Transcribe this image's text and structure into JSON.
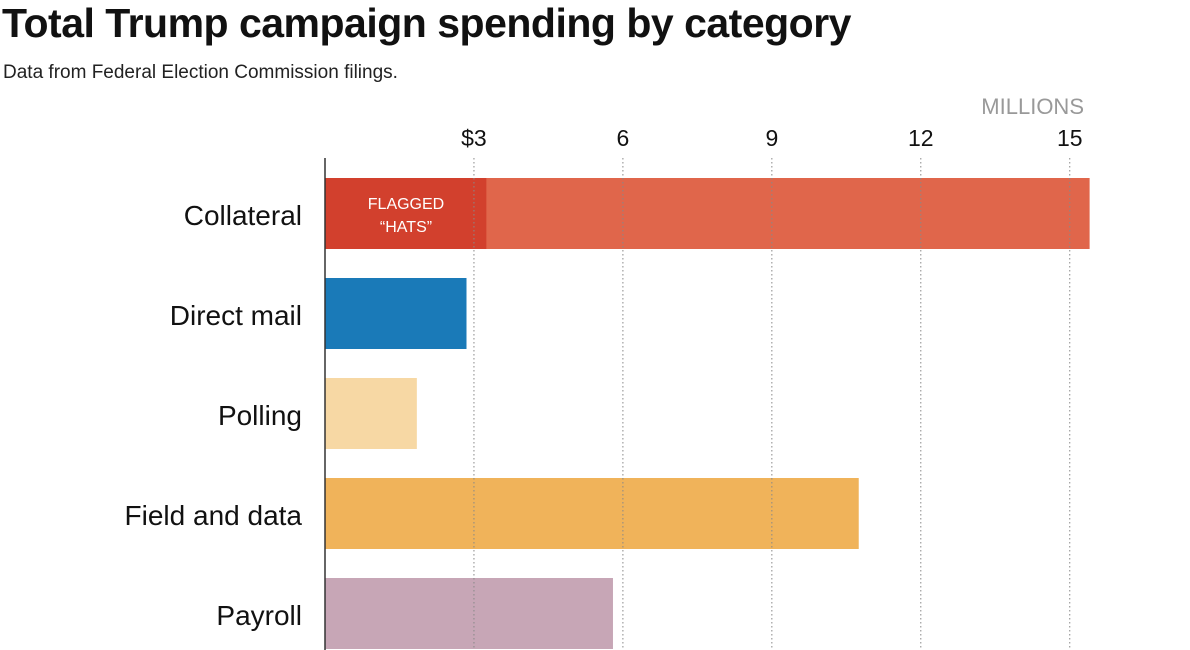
{
  "chart_data": {
    "type": "bar",
    "orientation": "horizontal",
    "title": "Total Trump campaign spending by category",
    "subtitle": "Data from Federal Election Commission filings.",
    "unit_label": "MILLIONS",
    "categories": [
      "Collateral",
      "Direct mail",
      "Polling",
      "Field and data",
      "Payroll"
    ],
    "values": [
      15.4,
      2.85,
      1.85,
      10.75,
      5.8
    ],
    "colors": [
      "#e0664b",
      "#1a7ab8",
      "#f7d8a4",
      "#f0b35a",
      "#c7a6b6"
    ],
    "xlim": [
      0,
      16
    ],
    "ticks": [
      3,
      6,
      9,
      12,
      15
    ],
    "tick_labels": [
      "$3",
      "6",
      "9",
      "12",
      "15"
    ],
    "grid": "vertical dotted",
    "annotation": {
      "category": "Collateral",
      "value": 3.25,
      "line1": "FLAGGED",
      "line2": "“HATS”",
      "color": "#d2402d"
    }
  }
}
